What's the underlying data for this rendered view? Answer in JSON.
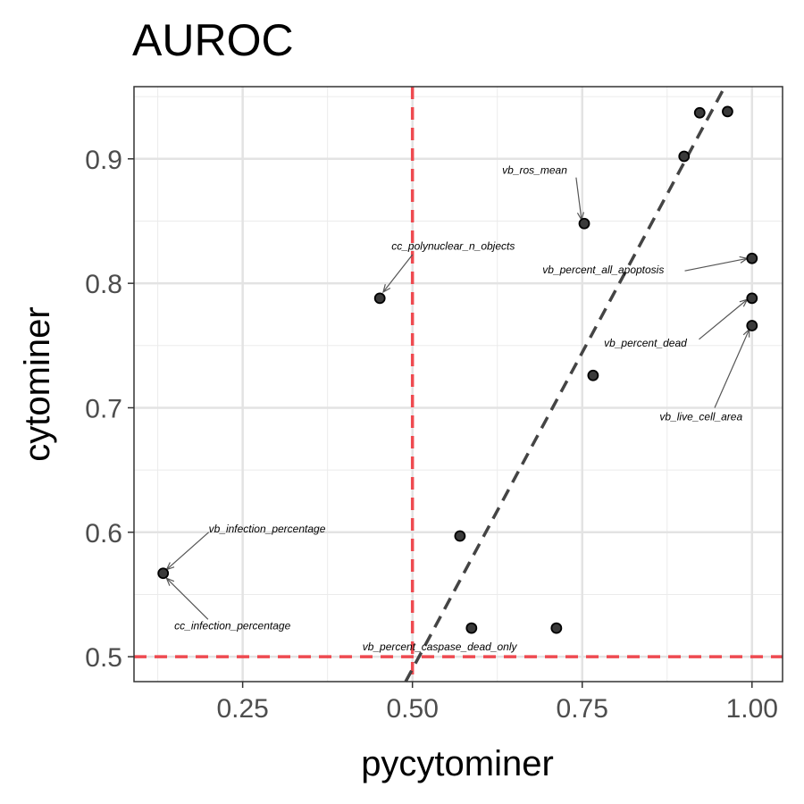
{
  "chart_data": {
    "type": "scatter",
    "title": "AUROC",
    "xlabel": "pycytominer",
    "ylabel": "cytominer",
    "xlim": [
      0.09,
      1.045
    ],
    "ylim": [
      0.48,
      0.958
    ],
    "x_ticks": [
      "0.25",
      "0.50",
      "0.75",
      "1.00"
    ],
    "x_tick_values": [
      0.25,
      0.5,
      0.75,
      1.0
    ],
    "y_ticks": [
      "0.5",
      "0.6",
      "0.7",
      "0.8",
      "0.9"
    ],
    "y_tick_values": [
      0.5,
      0.6,
      0.7,
      0.8,
      0.9
    ],
    "grid": true,
    "points": [
      {
        "x": 0.133,
        "y": 0.567
      },
      {
        "x": 0.452,
        "y": 0.788
      },
      {
        "x": 0.57,
        "y": 0.597
      },
      {
        "x": 0.587,
        "y": 0.523
      },
      {
        "x": 0.712,
        "y": 0.523
      },
      {
        "x": 0.753,
        "y": 0.848
      },
      {
        "x": 0.766,
        "y": 0.726
      },
      {
        "x": 0.9,
        "y": 0.902
      },
      {
        "x": 0.923,
        "y": 0.937
      },
      {
        "x": 0.964,
        "y": 0.938
      },
      {
        "x": 1.0,
        "y": 0.82
      },
      {
        "x": 1.0,
        "y": 0.788
      },
      {
        "x": 1.0,
        "y": 0.766
      }
    ],
    "reference_lines": {
      "vertical_x": 0.5,
      "horizontal_y": 0.5,
      "color": "#ee4a50"
    },
    "diagonal_line": {
      "from": [
        0.49,
        0.48
      ],
      "to": [
        0.96,
        0.958
      ],
      "color": "#444444"
    },
    "annotations": [
      {
        "text": "vb_ros_mean",
        "label_at": [
          0.68,
          0.888
        ],
        "label_anchor": "middle",
        "arrow_from": [
          0.741,
          0.885
        ],
        "arrow_to": [
          0.749,
          0.851
        ]
      },
      {
        "text": "cc_polynuclear_n_objects",
        "label_at": [
          0.56,
          0.827
        ],
        "label_anchor": "middle",
        "arrow_from": [
          0.5,
          0.823
        ],
        "arrow_to": [
          0.457,
          0.793
        ]
      },
      {
        "text": "vb_percent_all_apoptosis",
        "label_at": [
          0.781,
          0.808
        ],
        "label_anchor": "middle",
        "arrow_from": [
          0.901,
          0.81
        ],
        "arrow_to": [
          0.993,
          0.82
        ]
      },
      {
        "text": "vb_percent_dead",
        "label_at": [
          0.843,
          0.749
        ],
        "label_anchor": "middle",
        "arrow_from": [
          0.922,
          0.755
        ],
        "arrow_to": [
          0.993,
          0.787
        ]
      },
      {
        "text": "vb_live_cell_area",
        "label_at": [
          0.925,
          0.69
        ],
        "label_anchor": "middle",
        "arrow_from": [
          0.945,
          0.7
        ],
        "arrow_to": [
          0.996,
          0.763
        ]
      },
      {
        "text": "vb_infection_percentage",
        "label_at": [
          0.2,
          0.6
        ],
        "label_anchor": "start",
        "arrow_from": [
          0.2,
          0.6
        ],
        "arrow_to": [
          0.138,
          0.57
        ]
      },
      {
        "text": "cc_infection_percentage",
        "label_at": [
          0.235,
          0.522
        ],
        "label_anchor": "middle",
        "arrow_from": [
          0.199,
          0.53
        ],
        "arrow_to": [
          0.138,
          0.563
        ]
      },
      {
        "text": "vb_percent_caspase_dead_only",
        "label_at": [
          0.54,
          0.505
        ],
        "label_anchor": "middle",
        "arrow_from": null,
        "arrow_to": null
      }
    ]
  }
}
